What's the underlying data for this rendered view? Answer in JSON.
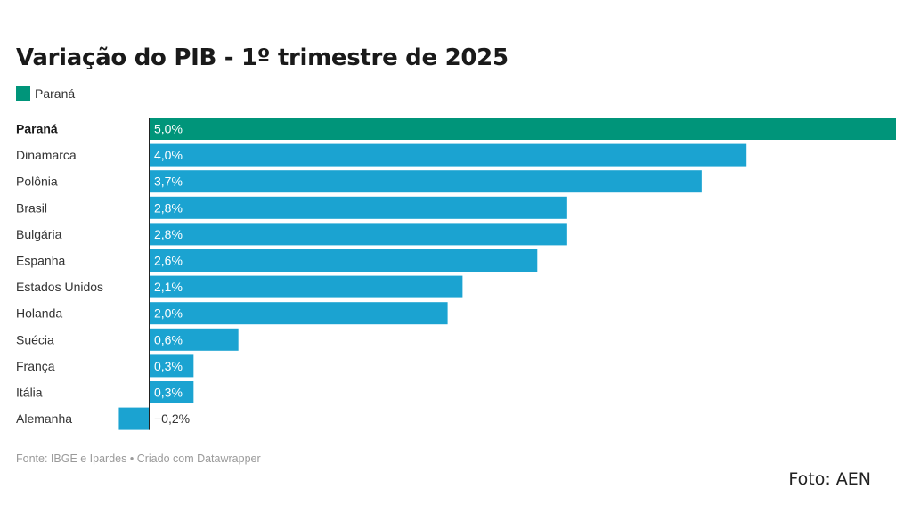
{
  "chart_data": {
    "type": "bar",
    "orientation": "horizontal",
    "title": "Variação do PIB - 1º trimestre de 2025",
    "legend": [
      {
        "label": "Paraná",
        "color": "#00957a"
      }
    ],
    "categories": [
      "Paraná",
      "Dinamarca",
      "Polônia",
      "Brasil",
      "Bulgária",
      "Espanha",
      "Estados Unidos",
      "Holanda",
      "Suécia",
      "França",
      "Itália",
      "Alemanha"
    ],
    "values": [
      5.0,
      4.0,
      3.7,
      2.8,
      2.8,
      2.6,
      2.1,
      2.0,
      0.6,
      0.3,
      0.3,
      -0.2
    ],
    "value_labels": [
      "5,0%",
      "4,0%",
      "3,7%",
      "2,8%",
      "2,8%",
      "2,6%",
      "2,1%",
      "2,0%",
      "0,6%",
      "0,3%",
      "0,3%",
      "−0,2%"
    ],
    "highlight": "Paraná",
    "highlight_color": "#00957a",
    "bar_color": "#1ba3d1",
    "xlim": [
      -0.2,
      5.0
    ],
    "grid": false,
    "legend_position": "top-left"
  },
  "footer": {
    "source": "Fonte: IBGE e Ipardes • Criado com Datawrapper"
  },
  "photo_credit": "Foto: AEN"
}
